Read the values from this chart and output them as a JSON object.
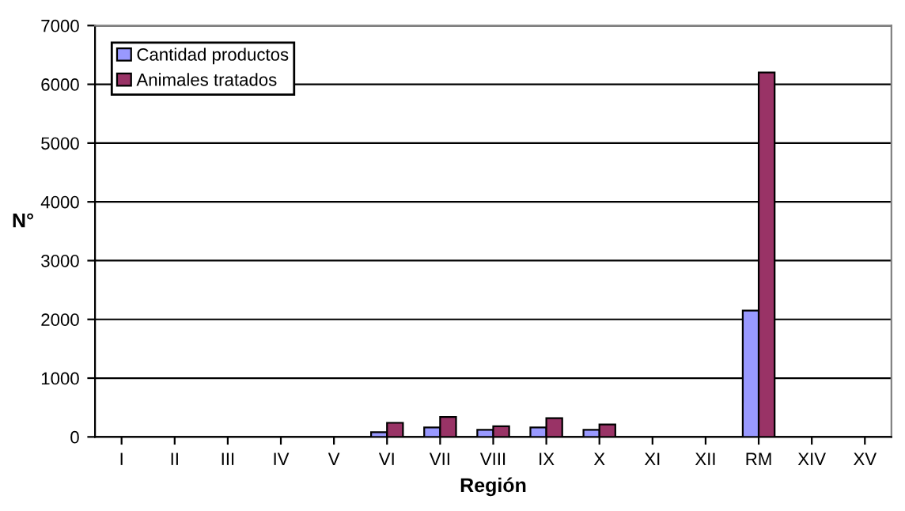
{
  "chart_data": {
    "type": "bar",
    "xlabel": "Región",
    "ylabel": "N°",
    "categories": [
      "I",
      "II",
      "III",
      "IV",
      "V",
      "VI",
      "VII",
      "VIII",
      "IX",
      "X",
      "XI",
      "XII",
      "RM",
      "XIV",
      "XV"
    ],
    "series": [
      {
        "name": "Cantidad productos",
        "color": "#9999ff",
        "values": [
          null,
          null,
          null,
          null,
          null,
          80,
          160,
          120,
          160,
          120,
          null,
          null,
          2150,
          null,
          null
        ]
      },
      {
        "name": "Animales tratados",
        "color": "#993366",
        "values": [
          null,
          null,
          null,
          null,
          null,
          240,
          340,
          180,
          320,
          210,
          null,
          null,
          6200,
          null,
          null
        ]
      }
    ],
    "ylim": [
      0,
      7000
    ],
    "yticks": [
      0,
      1000,
      2000,
      3000,
      4000,
      5000,
      6000,
      7000
    ],
    "grid": "y",
    "legend": "top left"
  }
}
